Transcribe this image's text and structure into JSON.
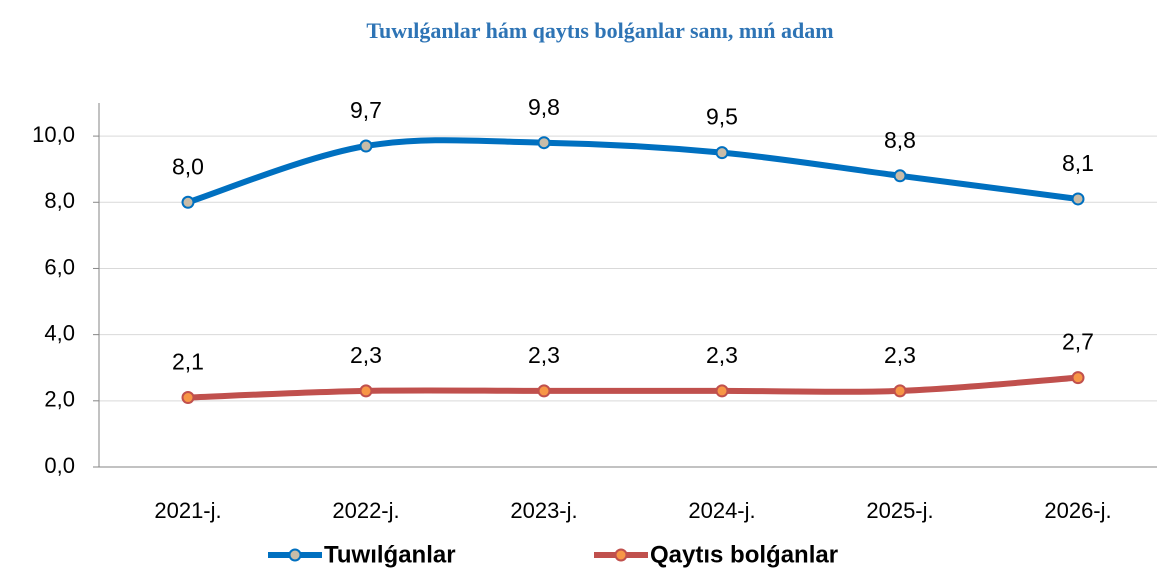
{
  "chart_data": {
    "type": "line",
    "title": "Tuwılǵanlar hám qaytıs bolǵanlar sanı, mıń adam",
    "categories": [
      "2021-j.",
      "2022-j.",
      "2023-j.",
      "2024-j.",
      "2025-j.",
      "2026-j."
    ],
    "series": [
      {
        "name": "Tuwılǵanlar",
        "color": "#0070c0",
        "marker_color": "#c8bca8",
        "values": [
          8.0,
          9.7,
          9.8,
          9.5,
          8.8,
          8.1
        ],
        "value_labels": [
          "8,0",
          "9,7",
          "9,8",
          "9,5",
          "8,8",
          "8,1"
        ]
      },
      {
        "name": "Qaytıs bolǵanlar",
        "color": "#c0504d",
        "marker_color": "#f79646",
        "values": [
          2.1,
          2.3,
          2.3,
          2.3,
          2.3,
          2.7
        ],
        "value_labels": [
          "2,1",
          "2,3",
          "2,3",
          "2,3",
          "2,3",
          "2,7"
        ]
      }
    ],
    "ylim": [
      0,
      11
    ],
    "yticks": [
      {
        "value": 0,
        "label": "0,0"
      },
      {
        "value": 2,
        "label": "2,0"
      },
      {
        "value": 4,
        "label": "4,0"
      },
      {
        "value": 6,
        "label": "6,0"
      },
      {
        "value": 8,
        "label": "8,0"
      },
      {
        "value": 10,
        "label": "10,0"
      }
    ],
    "grid": true,
    "smooth": true,
    "legend": "bottom"
  }
}
